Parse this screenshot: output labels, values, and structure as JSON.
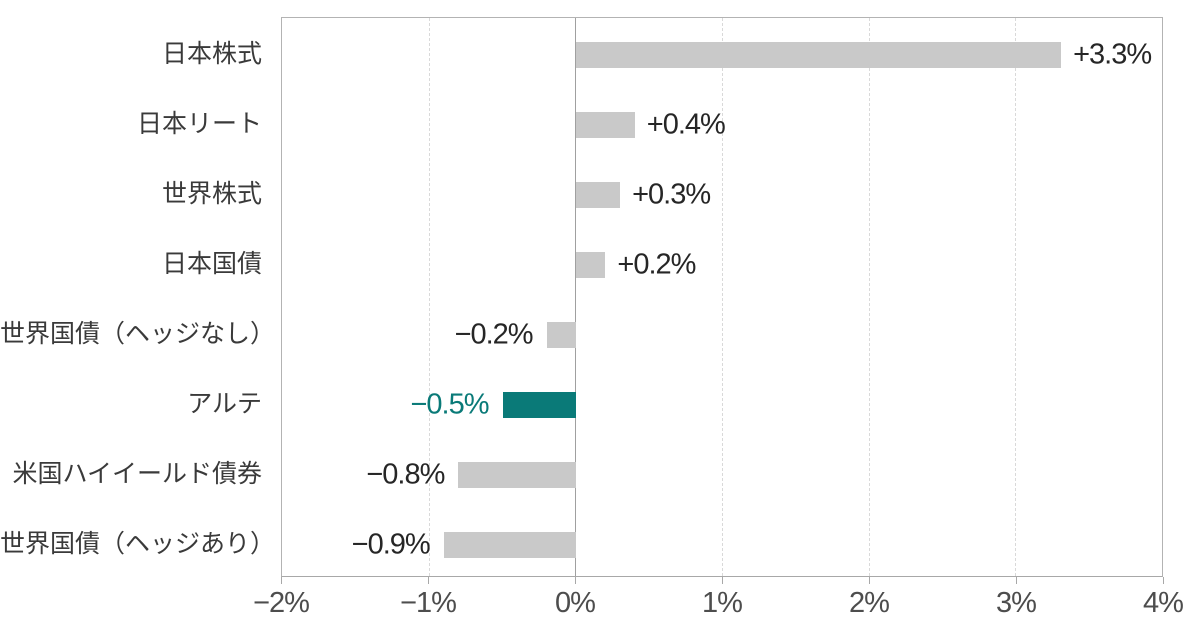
{
  "chart_data": {
    "type": "bar",
    "orientation": "horizontal",
    "title": "",
    "xlabel": "",
    "ylabel": "",
    "categories": [
      "日本株式",
      "日本リート",
      "世界株式",
      "日本国債",
      "世界国債（ヘッジなし）",
      "アルテ",
      "米国ハイイールド債券",
      "世界国債（ヘッジあり）"
    ],
    "values": [
      3.3,
      0.4,
      0.3,
      0.2,
      -0.2,
      -0.5,
      -0.8,
      -0.9
    ],
    "value_labels": [
      "+3.3%",
      "+0.4%",
      "+0.3%",
      "+0.2%",
      "−0.2%",
      "−0.5%",
      "−0.8%",
      "−0.9%"
    ],
    "highlight_index": 5,
    "xlim": [
      -2,
      4
    ],
    "x_ticks": [
      -2,
      -1,
      0,
      1,
      2,
      3,
      4
    ],
    "x_tick_labels": [
      "−2%",
      "−1%",
      "0%",
      "1%",
      "2%",
      "3%",
      "4%"
    ],
    "grid": "vertical dashed gridlines at each tick except 0; solid line at 0",
    "legend": "none"
  },
  "colors": {
    "bar_default": "#c9c9c9",
    "bar_highlight": "#0a7a78",
    "value_label_default": "#262626",
    "value_label_highlight": "#0a7a78",
    "category_label": "#3a3a3a",
    "tick_label": "#4d4d4d",
    "axis_line": "#a8a8a8",
    "gridline": "#d9d9d9",
    "plot_border": "#b3b3b3",
    "zero_line": "#a0a0a0",
    "background": "#ffffff"
  }
}
